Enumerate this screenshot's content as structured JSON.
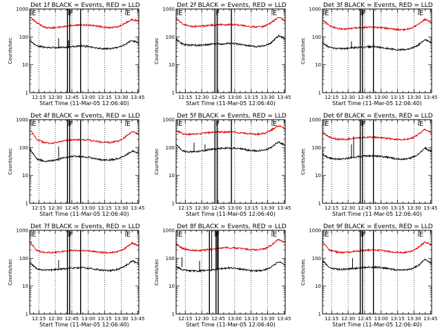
{
  "chart_data": {
    "type": "line",
    "layout": "3x3 grid of panels",
    "xlabel": "Start Time (11-Mar-05 12:06:40)",
    "ylabel": "Counts/sec",
    "yscale": "log",
    "ylim": [
      1,
      1000
    ],
    "xlim": [
      "12:06:40",
      "13:46:00"
    ],
    "x_tick_labels": [
      "12:15",
      "12:30",
      "12:45",
      "13:00",
      "13:15",
      "13:30",
      "13:45"
    ],
    "y_tick_labels": [
      "1",
      "10",
      "100",
      "1000"
    ],
    "colors": {
      "events": "#000000",
      "lld": "#e00000"
    },
    "grid": "dotted vertical lines",
    "panels": [
      {
        "title": "Det 1f BLACK = Events, RED = LLD",
        "flags": [
          {
            "label": "E",
            "time": "12:08"
          },
          {
            "label": "F",
            "time": "12:42"
          },
          {
            "label": "E",
            "time": "13:34"
          }
        ],
        "bars": [
          "12:41",
          "12:43",
          "12:53"
        ],
        "black_series": {
          "name": "Events",
          "times": [
            "12:07",
            "12:13",
            "12:20",
            "12:27",
            "12:33",
            "12:40",
            "12:47",
            "12:53",
            "13:00",
            "13:07",
            "13:13",
            "13:20",
            "13:27",
            "13:33",
            "13:40",
            "13:46"
          ],
          "values": [
            72,
            48,
            42,
            42,
            42,
            42,
            45,
            48,
            45,
            40,
            38,
            38,
            42,
            52,
            75,
            60
          ]
        },
        "red_series": {
          "name": "LLD",
          "times": [
            "12:07",
            "12:13",
            "12:20",
            "12:27",
            "12:33",
            "12:40",
            "12:47",
            "12:53",
            "13:00",
            "13:07",
            "13:13",
            "13:20",
            "13:27",
            "13:33",
            "13:40",
            "13:46"
          ],
          "values": [
            500,
            320,
            220,
            210,
            225,
            240,
            265,
            270,
            265,
            245,
            225,
            215,
            230,
            300,
            420,
            360
          ]
        },
        "spikes": [
          {
            "time": "12:33",
            "value": 90
          },
          {
            "time": "12:42",
            "value": 75
          }
        ]
      },
      {
        "title": "Det 2f BLACK = Events, RED = LLD",
        "flags": [
          {
            "label": "E",
            "time": "12:08"
          },
          {
            "label": "F",
            "time": "12:42"
          },
          {
            "label": "E",
            "time": "13:34"
          }
        ],
        "bars": [
          "12:42",
          "12:44",
          "12:57"
        ],
        "black_series": {
          "name": "Events",
          "times": [
            "12:07",
            "12:13",
            "12:20",
            "12:27",
            "12:33",
            "12:40",
            "12:47",
            "12:53",
            "13:00",
            "13:07",
            "13:13",
            "13:20",
            "13:27",
            "13:33",
            "13:40",
            "13:46"
          ],
          "values": [
            80,
            55,
            50,
            50,
            52,
            55,
            55,
            58,
            58,
            52,
            48,
            45,
            48,
            60,
            110,
            85
          ]
        },
        "red_series": {
          "name": "LLD",
          "times": [
            "12:07",
            "12:13",
            "12:20",
            "12:27",
            "12:33",
            "12:40",
            "12:47",
            "12:53",
            "13:00",
            "13:07",
            "13:13",
            "13:20",
            "13:27",
            "13:33",
            "13:40",
            "13:46"
          ],
          "values": [
            450,
            280,
            240,
            240,
            250,
            265,
            275,
            275,
            275,
            255,
            235,
            225,
            240,
            320,
            500,
            380
          ]
        },
        "spikes": [
          {
            "time": "12:42",
            "value": 80
          }
        ]
      },
      {
        "title": "Det 3f BLACK = Events, RED = LLD",
        "flags": [
          {
            "label": "E",
            "time": "12:08"
          },
          {
            "label": "F",
            "time": "12:42"
          },
          {
            "label": "E",
            "time": "13:34"
          }
        ],
        "bars": [
          "12:41",
          "12:43",
          "12:53"
        ],
        "black_series": {
          "name": "Events",
          "times": [
            "12:07",
            "12:13",
            "12:20",
            "12:27",
            "12:33",
            "12:40",
            "12:47",
            "12:53",
            "13:00",
            "13:07",
            "13:13",
            "13:20",
            "13:27",
            "13:33",
            "13:40",
            "13:46"
          ],
          "values": [
            60,
            42,
            38,
            38,
            40,
            42,
            44,
            45,
            42,
            38,
            35,
            35,
            38,
            48,
            80,
            60
          ]
        },
        "red_series": {
          "name": "LLD",
          "times": [
            "12:07",
            "12:13",
            "12:20",
            "12:27",
            "12:33",
            "12:40",
            "12:47",
            "12:53",
            "13:00",
            "13:07",
            "13:13",
            "13:20",
            "13:27",
            "13:33",
            "13:40",
            "13:46"
          ],
          "values": [
            400,
            250,
            200,
            190,
            200,
            215,
            220,
            220,
            215,
            200,
            185,
            180,
            200,
            270,
            430,
            330
          ]
        },
        "spikes": [
          {
            "time": "12:33",
            "value": 70
          }
        ]
      },
      {
        "title": "Det 4f BLACK = Events, RED = LLD",
        "flags": [
          {
            "label": "E",
            "time": "12:08"
          },
          {
            "label": "F",
            "time": "12:42"
          },
          {
            "label": "E",
            "time": "13:34"
          }
        ],
        "bars": [
          "12:41",
          "12:43",
          "12:53"
        ],
        "black_series": {
          "name": "Events",
          "times": [
            "12:07",
            "12:13",
            "12:20",
            "12:27",
            "12:33",
            "12:40",
            "12:47",
            "12:53",
            "13:00",
            "13:07",
            "13:13",
            "13:20",
            "13:27",
            "13:33",
            "13:40",
            "13:46"
          ],
          "values": [
            85,
            40,
            32,
            34,
            38,
            45,
            48,
            48,
            45,
            40,
            36,
            36,
            40,
            50,
            75,
            60
          ]
        },
        "red_series": {
          "name": "LLD",
          "times": [
            "12:07",
            "12:13",
            "12:20",
            "12:27",
            "12:33",
            "12:40",
            "12:47",
            "12:53",
            "13:00",
            "13:07",
            "13:13",
            "13:20",
            "13:27",
            "13:33",
            "13:40",
            "13:46"
          ],
          "values": [
            420,
            200,
            150,
            140,
            160,
            180,
            190,
            190,
            185,
            170,
            155,
            150,
            170,
            230,
            380,
            300
          ]
        },
        "spikes": [
          {
            "time": "12:33",
            "value": 110
          },
          {
            "time": "12:41",
            "value": 90
          }
        ]
      },
      {
        "title": "Det 5f BLACK = Events, RED = LLD",
        "flags": [
          {
            "label": "E",
            "time": "12:08"
          },
          {
            "label": "F",
            "time": "12:42"
          },
          {
            "label": "E",
            "time": "13:34"
          }
        ],
        "bars": [
          "12:42",
          "12:44",
          "12:57"
        ],
        "black_series": {
          "name": "Events",
          "times": [
            "12:07",
            "12:13",
            "12:20",
            "12:27",
            "12:33",
            "12:40",
            "12:47",
            "12:53",
            "13:00",
            "13:07",
            "13:13",
            "13:20",
            "13:27",
            "13:33",
            "13:40",
            "13:46"
          ],
          "values": [
            120,
            75,
            70,
            72,
            80,
            88,
            92,
            95,
            95,
            88,
            80,
            76,
            80,
            100,
            160,
            120
          ]
        },
        "red_series": {
          "name": "LLD",
          "times": [
            "12:07",
            "12:13",
            "12:20",
            "12:27",
            "12:33",
            "12:40",
            "12:47",
            "12:53",
            "13:00",
            "13:07",
            "13:13",
            "13:20",
            "13:27",
            "13:33",
            "13:40",
            "13:46"
          ],
          "values": [
            400,
            310,
            300,
            310,
            330,
            350,
            360,
            360,
            355,
            330,
            310,
            300,
            320,
            420,
            600,
            480
          ]
        },
        "spikes": [
          {
            "time": "12:23",
            "value": 150
          },
          {
            "time": "12:33",
            "value": 130
          }
        ]
      },
      {
        "title": "Det 6f BLACK = Events, RED = LLD",
        "flags": [
          {
            "label": "E",
            "time": "12:08"
          },
          {
            "label": "F",
            "time": "12:42"
          },
          {
            "label": "E",
            "time": "13:34"
          }
        ],
        "bars": [
          "12:41",
          "12:43",
          "12:53"
        ],
        "black_series": {
          "name": "Events",
          "times": [
            "12:07",
            "12:13",
            "12:20",
            "12:27",
            "12:33",
            "12:40",
            "12:47",
            "12:53",
            "13:00",
            "13:07",
            "13:13",
            "13:20",
            "13:27",
            "13:33",
            "13:40",
            "13:46"
          ],
          "values": [
            55,
            42,
            38,
            40,
            44,
            48,
            50,
            50,
            48,
            44,
            40,
            38,
            42,
            55,
            95,
            70
          ]
        },
        "red_series": {
          "name": "LLD",
          "times": [
            "12:07",
            "12:13",
            "12:20",
            "12:27",
            "12:33",
            "12:40",
            "12:47",
            "12:53",
            "13:00",
            "13:07",
            "13:13",
            "13:20",
            "13:27",
            "13:33",
            "13:40",
            "13:46"
          ],
          "values": [
            350,
            230,
            200,
            195,
            210,
            225,
            235,
            235,
            225,
            210,
            195,
            190,
            210,
            280,
            450,
            350
          ]
        },
        "spikes": [
          {
            "time": "12:33",
            "value": 130
          },
          {
            "time": "12:35",
            "value": 250
          }
        ]
      },
      {
        "title": "Det 7f BLACK = Events, RED = LLD",
        "flags": [
          {
            "label": "E",
            "time": "12:08"
          },
          {
            "label": "F",
            "time": "12:42"
          },
          {
            "label": "E",
            "time": "13:34"
          }
        ],
        "bars": [
          "12:41",
          "12:43",
          "12:53"
        ],
        "black_series": {
          "name": "Events",
          "times": [
            "12:07",
            "12:13",
            "12:20",
            "12:27",
            "12:33",
            "12:40",
            "12:47",
            "12:53",
            "13:00",
            "13:07",
            "13:13",
            "13:20",
            "13:27",
            "13:33",
            "13:40",
            "13:46"
          ],
          "values": [
            70,
            42,
            38,
            38,
            40,
            42,
            45,
            46,
            44,
            40,
            37,
            36,
            40,
            50,
            80,
            62
          ]
        },
        "red_series": {
          "name": "LLD",
          "times": [
            "12:07",
            "12:13",
            "12:20",
            "12:27",
            "12:33",
            "12:40",
            "12:47",
            "12:53",
            "13:00",
            "13:07",
            "13:13",
            "13:20",
            "13:27",
            "13:33",
            "13:40",
            "13:46"
          ],
          "values": [
            400,
            190,
            160,
            160,
            170,
            180,
            190,
            190,
            185,
            170,
            160,
            155,
            170,
            220,
            350,
            280
          ]
        },
        "spikes": [
          {
            "time": "12:33",
            "value": 85
          }
        ]
      },
      {
        "title": "Det 8f BLACK = Events, RED = LLD",
        "flags": [
          {
            "label": "E",
            "time": "12:08"
          },
          {
            "label": "F",
            "time": "12:42"
          },
          {
            "label": "E",
            "time": "13:34"
          }
        ],
        "bars": [
          "12:37",
          "12:43",
          "12:45"
        ],
        "black_series": {
          "name": "Events",
          "times": [
            "12:07",
            "12:13",
            "12:20",
            "12:27",
            "12:33",
            "12:40",
            "12:47",
            "12:53",
            "13:00",
            "13:07",
            "13:13",
            "13:20",
            "13:27",
            "13:33",
            "13:40",
            "13:46"
          ],
          "values": [
            48,
            38,
            35,
            35,
            36,
            38,
            42,
            45,
            44,
            40,
            36,
            35,
            38,
            48,
            75,
            58
          ]
        },
        "red_series": {
          "name": "LLD",
          "times": [
            "12:07",
            "12:13",
            "12:20",
            "12:27",
            "12:33",
            "12:40",
            "12:47",
            "12:53",
            "13:00",
            "13:07",
            "13:13",
            "13:20",
            "13:27",
            "13:33",
            "13:40",
            "13:46"
          ],
          "values": [
            320,
            220,
            190,
            190,
            200,
            210,
            230,
            240,
            235,
            220,
            205,
            200,
            215,
            290,
            480,
            360
          ]
        },
        "spikes": [
          {
            "time": "12:12",
            "value": 110
          },
          {
            "time": "12:28",
            "value": 80
          },
          {
            "time": "12:39",
            "value": 1000
          },
          {
            "time": "12:44",
            "value": 1000
          }
        ]
      },
      {
        "title": "Det 9f BLACK = Events, RED = LLD",
        "flags": [
          {
            "label": "E",
            "time": "12:08"
          },
          {
            "label": "F",
            "time": "12:42"
          },
          {
            "label": "E",
            "time": "13:34"
          }
        ],
        "bars": [
          "12:41",
          "12:43",
          "12:53"
        ],
        "black_series": {
          "name": "Events",
          "times": [
            "12:07",
            "12:13",
            "12:20",
            "12:27",
            "12:33",
            "12:40",
            "12:47",
            "12:53",
            "13:00",
            "13:07",
            "13:13",
            "13:20",
            "13:27",
            "13:33",
            "13:40",
            "13:46"
          ],
          "values": [
            80,
            45,
            40,
            40,
            42,
            45,
            48,
            48,
            46,
            42,
            38,
            37,
            40,
            52,
            90,
            65
          ]
        },
        "red_series": {
          "name": "LLD",
          "times": [
            "12:07",
            "12:13",
            "12:20",
            "12:27",
            "12:33",
            "12:40",
            "12:47",
            "12:53",
            "13:00",
            "13:07",
            "13:13",
            "13:20",
            "13:27",
            "13:33",
            "13:40",
            "13:46"
          ],
          "values": [
            380,
            200,
            165,
            160,
            170,
            185,
            195,
            195,
            190,
            175,
            165,
            160,
            175,
            230,
            380,
            300
          ]
        },
        "spikes": [
          {
            "time": "12:34",
            "value": 100
          }
        ]
      }
    ]
  }
}
